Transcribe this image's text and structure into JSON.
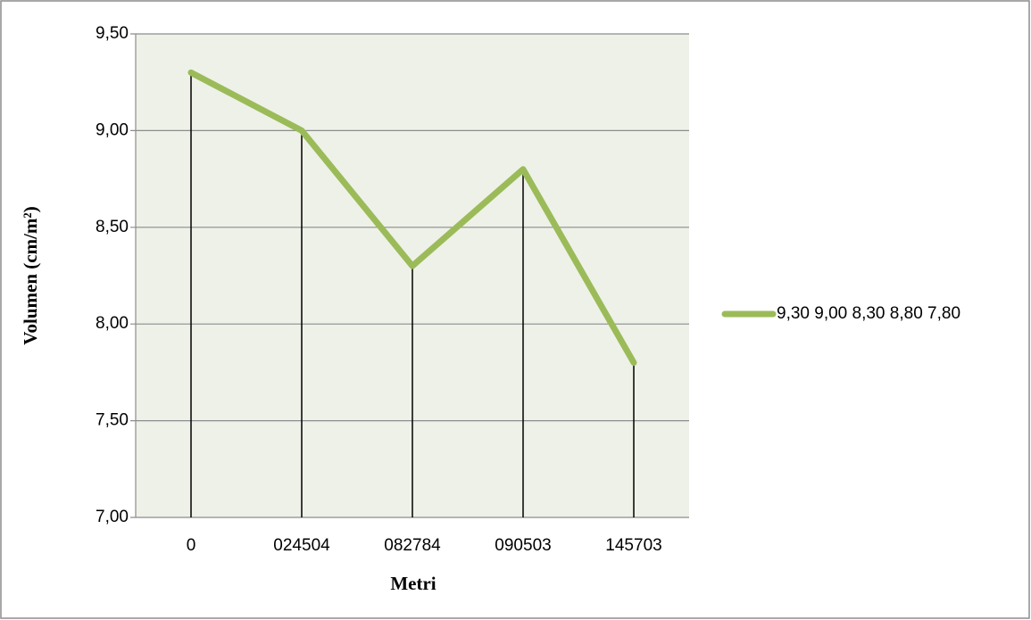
{
  "chart_data": {
    "type": "line",
    "categories": [
      "0",
      "024504",
      "082784",
      "090503",
      "145703"
    ],
    "series": [
      {
        "name": "9,30 9,00 8,30 8,80 7,80",
        "color": "#9bbb59",
        "values": [
          9.3,
          9.0,
          8.3,
          8.8,
          7.8
        ]
      }
    ],
    "xlabel": "Metri",
    "ylabel": "Volumen (cm/m²)",
    "ylim": [
      7,
      9.5
    ],
    "yticks": [
      {
        "value": 7,
        "label": "7,00"
      },
      {
        "value": 7.5,
        "label": "7,50"
      },
      {
        "value": 8,
        "label": "8,00"
      },
      {
        "value": 8.5,
        "label": "8,50"
      },
      {
        "value": 9,
        "label": "9,00"
      },
      {
        "value": 9.5,
        "label": "9,50"
      }
    ],
    "grid": true,
    "drop_lines": true,
    "legend": "right"
  }
}
